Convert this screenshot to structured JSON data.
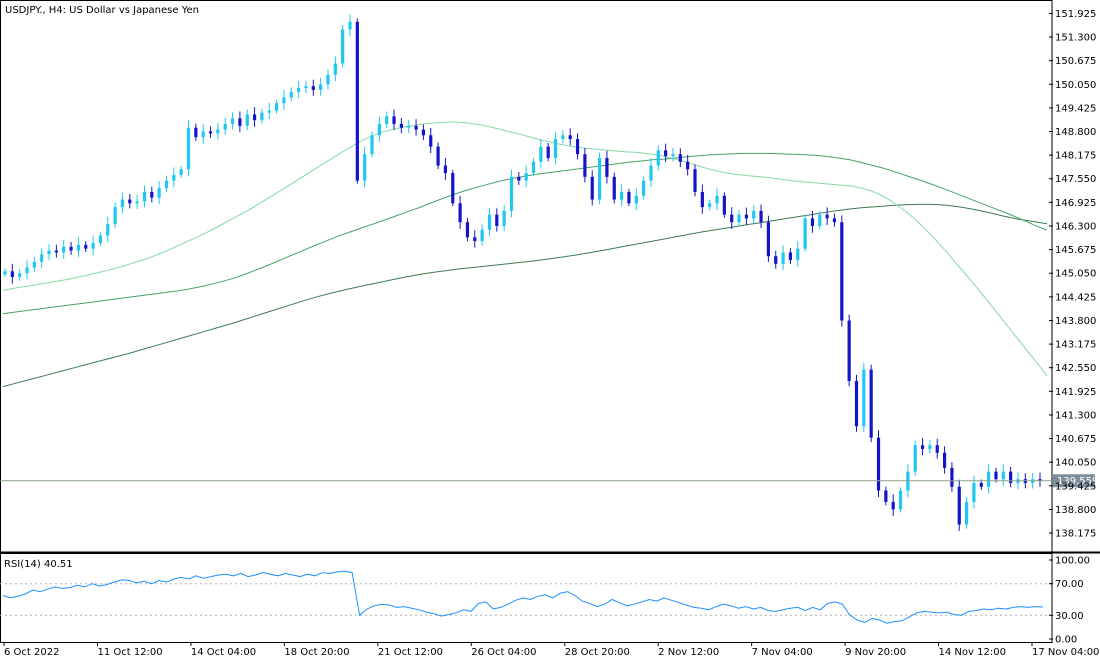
{
  "chart_data": [
    {
      "type": "candlestick",
      "title": "USDJPY., H4:  US Dollar vs Japanese Yen",
      "colors": {
        "bull": "#1ec8f0",
        "bear": "#1414c8",
        "ma_fast": "#86d8a6",
        "ma_mid": "#47a267",
        "ma_slow": "#3f7b53",
        "current_line": "#8aa08a",
        "price_tag": "#7d8e9c"
      },
      "ylim": [
        137.7,
        152.2
      ],
      "y_ticks": [
        "151.925",
        "151.300",
        "150.675",
        "150.050",
        "149.425",
        "148.800",
        "148.175",
        "147.550",
        "146.925",
        "146.300",
        "145.675",
        "145.050",
        "144.425",
        "143.800",
        "143.175",
        "142.550",
        "141.925",
        "141.300",
        "140.675",
        "140.050",
        "139.425",
        "138.800",
        "138.175"
      ],
      "current_price": "139.559",
      "x_ticks": [
        "6 Oct 2022",
        "11 Oct 12:00",
        "14 Oct 04:00",
        "18 Oct 20:00",
        "21 Oct 12:00",
        "26 Oct 04:00",
        "28 Oct 20:00",
        "2 Nov 12:00",
        "7 Nov 04:00",
        "9 Nov 20:00",
        "14 Nov 12:00",
        "17 Nov 04:00"
      ],
      "closes": [
        145.1,
        144.95,
        145.05,
        145.2,
        145.35,
        145.55,
        145.65,
        145.6,
        145.75,
        145.65,
        145.8,
        145.7,
        145.85,
        146.05,
        146.35,
        146.8,
        147.0,
        146.9,
        146.95,
        147.2,
        147.05,
        147.3,
        147.5,
        147.65,
        147.8,
        148.9,
        148.65,
        148.8,
        148.75,
        148.85,
        149.0,
        149.15,
        148.95,
        149.25,
        149.1,
        149.3,
        149.35,
        149.55,
        149.7,
        149.85,
        149.95,
        150.0,
        149.9,
        150.05,
        150.3,
        150.6,
        151.5,
        151.7,
        147.5,
        148.2,
        148.7,
        149.0,
        149.2,
        149.0,
        148.9,
        148.95,
        148.85,
        148.7,
        148.4,
        147.9,
        147.7,
        146.9,
        146.4,
        146.0,
        145.9,
        146.2,
        146.6,
        146.3,
        146.7,
        147.6,
        147.5,
        147.7,
        148.0,
        148.4,
        148.1,
        148.6,
        148.7,
        148.6,
        148.2,
        147.6,
        147.0,
        148.1,
        147.6,
        147.0,
        147.2,
        146.9,
        147.1,
        147.5,
        147.9,
        148.3,
        148.15,
        148.2,
        148.0,
        147.8,
        147.2,
        146.8,
        146.9,
        147.1,
        146.6,
        146.4,
        146.6,
        146.5,
        146.7,
        146.4,
        145.5,
        145.3,
        145.6,
        145.4,
        145.7,
        146.5,
        146.3,
        146.6,
        146.5,
        146.4,
        143.8,
        142.2,
        141.0,
        142.5,
        140.7,
        139.3,
        139.0,
        138.8,
        139.3,
        139.8,
        140.5,
        140.4,
        140.5,
        140.3,
        139.9,
        139.4,
        138.4,
        139.0,
        139.5,
        139.4,
        139.8,
        139.6,
        139.8,
        139.5,
        139.6,
        139.5,
        139.6,
        139.56
      ],
      "ma_fast": [
        144.6,
        144.64,
        144.68,
        144.71,
        144.75,
        144.78,
        144.82,
        144.86,
        144.9,
        144.95,
        145.0,
        145.05,
        145.1,
        145.16,
        145.22,
        145.29,
        145.36,
        145.43,
        145.51,
        145.6,
        145.7,
        145.8,
        145.9,
        146.0,
        146.11,
        146.22,
        146.34,
        146.46,
        146.58,
        146.7,
        146.83,
        146.97,
        147.1,
        147.24,
        147.38,
        147.52,
        147.66,
        147.8,
        147.94,
        148.08,
        148.22,
        148.35,
        148.48,
        148.6,
        148.7,
        148.78,
        148.84,
        148.89,
        148.93,
        148.97,
        149.0,
        149.02,
        149.04,
        149.05,
        149.05,
        149.03,
        149.0,
        148.96,
        148.91,
        148.86,
        148.8,
        148.75,
        148.69,
        148.63,
        148.57,
        148.52,
        148.47,
        148.43,
        148.39,
        148.36,
        148.34,
        148.32,
        148.3,
        148.28,
        148.26,
        148.25,
        148.23,
        148.2,
        148.17,
        148.12,
        148.06,
        148.0,
        147.93,
        147.86,
        147.8,
        147.75,
        147.7,
        147.67,
        147.64,
        147.62,
        147.6,
        147.58,
        147.55,
        147.52,
        147.49,
        147.47,
        147.45,
        147.43,
        147.41,
        147.39,
        147.37,
        147.35,
        147.3,
        147.24,
        147.15,
        147.03,
        146.88,
        146.72,
        146.54,
        146.34,
        146.12,
        145.88,
        145.63,
        145.37,
        145.11,
        144.85,
        144.58,
        144.3,
        144.02,
        143.74,
        143.46,
        143.18,
        142.9,
        142.62,
        142.34
      ],
      "ma_mid": [
        143.98,
        144.02,
        144.06,
        144.1,
        144.14,
        144.18,
        144.22,
        144.26,
        144.3,
        144.34,
        144.38,
        144.42,
        144.46,
        144.5,
        144.54,
        144.58,
        144.63,
        144.69,
        144.76,
        144.84,
        144.93,
        145.04,
        145.16,
        145.28,
        145.41,
        145.54,
        145.67,
        145.8,
        145.92,
        146.04,
        146.15,
        146.26,
        146.36,
        146.47,
        146.58,
        146.69,
        146.8,
        146.92,
        147.04,
        147.15,
        147.25,
        147.34,
        147.42,
        147.5,
        147.56,
        147.62,
        147.67,
        147.71,
        147.75,
        147.79,
        147.83,
        147.87,
        147.91,
        147.95,
        147.99,
        148.02,
        148.05,
        148.07,
        148.1,
        148.13,
        148.16,
        148.18,
        148.2,
        148.21,
        148.22,
        148.22,
        148.22,
        148.21,
        148.2,
        148.19,
        148.17,
        148.14,
        148.1,
        148.05,
        147.98,
        147.9,
        147.82,
        147.72,
        147.62,
        147.52,
        147.41,
        147.3,
        147.18,
        147.06,
        146.94,
        146.82,
        146.7,
        146.58,
        146.45,
        146.31,
        146.19
      ],
      "ma_slow": [
        142.05,
        142.15,
        142.25,
        142.35,
        142.45,
        142.55,
        142.65,
        142.75,
        142.85,
        142.95,
        143.06,
        143.17,
        143.28,
        143.39,
        143.5,
        143.61,
        143.72,
        143.84,
        143.96,
        144.08,
        144.2,
        144.32,
        144.43,
        144.53,
        144.62,
        144.7,
        144.78,
        144.86,
        144.94,
        145.01,
        145.07,
        145.12,
        145.17,
        145.21,
        145.25,
        145.29,
        145.33,
        145.37,
        145.42,
        145.47,
        145.53,
        145.59,
        145.66,
        145.73,
        145.8,
        145.87,
        145.94,
        146.01,
        146.08,
        146.15,
        146.21,
        146.27,
        146.33,
        146.39,
        146.45,
        146.51,
        146.57,
        146.63,
        146.69,
        146.74,
        146.78,
        146.81,
        146.84,
        146.86,
        146.87,
        146.87,
        146.85,
        146.8,
        146.73,
        146.65,
        146.56,
        146.48,
        146.42,
        146.36
      ]
    },
    {
      "type": "line",
      "title": "RSI(14) 40.51",
      "ylim": [
        0,
        100
      ],
      "y_ticks": [
        "100.00",
        "70.00",
        "30.00",
        "0.00"
      ],
      "levels": [
        70,
        30
      ],
      "values": [
        55,
        52,
        54,
        57,
        62,
        60,
        63,
        66,
        64,
        65,
        68,
        66,
        70,
        67,
        69,
        72,
        75,
        74,
        71,
        73,
        70,
        74,
        72,
        76,
        78,
        76,
        80,
        77,
        79,
        81,
        82,
        80,
        83,
        79,
        81,
        84,
        82,
        80,
        83,
        81,
        79,
        82,
        80,
        84,
        83,
        85,
        86,
        84,
        30,
        38,
        42,
        44,
        43,
        40,
        41,
        39,
        37,
        34,
        32,
        29,
        31,
        33,
        37,
        35,
        45,
        47,
        38,
        40,
        44,
        49,
        52,
        50,
        54,
        56,
        52,
        58,
        60,
        55,
        48,
        45,
        41,
        44,
        50,
        46,
        42,
        44,
        47,
        50,
        48,
        52,
        49,
        46,
        43,
        40,
        39,
        37,
        41,
        44,
        42,
        39,
        41,
        38,
        40,
        36,
        35,
        37,
        39,
        40,
        36,
        40,
        37,
        45,
        47,
        44,
        30,
        24,
        21,
        26,
        24,
        20,
        22,
        23,
        28,
        33,
        35,
        34,
        33,
        34,
        31,
        30,
        35,
        36,
        38,
        37,
        39,
        38,
        40,
        41,
        40,
        41,
        40.51
      ]
    }
  ]
}
